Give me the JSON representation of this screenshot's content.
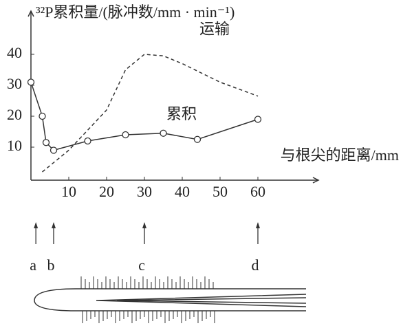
{
  "chart_data": {
    "type": "line",
    "y_label": "³²P累积量/(脉冲数/mm · min⁻¹)",
    "x_label": "与根尖的距离/mm",
    "series": [
      {
        "name": "累积",
        "color": "#333333",
        "style": "solid",
        "markers": true,
        "x": [
          0,
          3,
          4,
          6,
          15,
          25,
          35,
          44,
          60
        ],
        "values": [
          31,
          20,
          11.5,
          9,
          12,
          14,
          14.5,
          12.5,
          19
        ]
      },
      {
        "name": "运输",
        "color": "#333333",
        "style": "dashed",
        "markers": false,
        "x": [
          3,
          10,
          20,
          25,
          30,
          35,
          40,
          50,
          60
        ],
        "values": [
          2,
          9,
          22,
          35,
          40,
          39.5,
          37,
          31,
          26.5
        ]
      }
    ],
    "xlim": [
      0,
      76
    ],
    "ylim": [
      0,
      54
    ],
    "xticks": [
      10,
      20,
      30,
      40,
      50,
      60
    ],
    "yticks": [
      10,
      20,
      30,
      40
    ],
    "root_markers": [
      {
        "label": "a",
        "x": 1.3
      },
      {
        "label": "b",
        "x": 6
      },
      {
        "label": "c",
        "x": 30
      },
      {
        "label": "d",
        "x": 60
      }
    ]
  }
}
